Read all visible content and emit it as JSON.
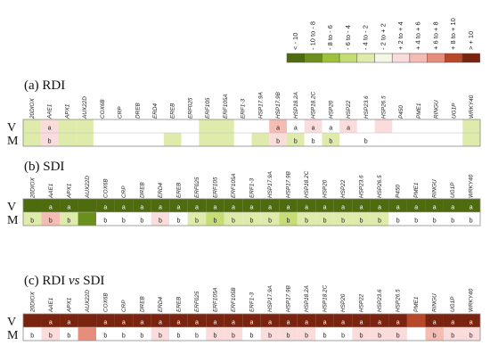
{
  "chart_data": {
    "type": "heatmap",
    "legend": {
      "bins": [
        {
          "label": "< - 10",
          "color": "#4e6b10"
        },
        {
          "label": "- 10 to - 8",
          "color": "#6b8f1c"
        },
        {
          "label": "- 8 to - 6",
          "color": "#9dc23a"
        },
        {
          "label": "- 6 to - 4",
          "color": "#c5dd74"
        },
        {
          "label": "- 4 to - 2",
          "color": "#deebab"
        },
        {
          "label": "- 2 to + 2",
          "color": "#f4f7e4"
        },
        {
          "label": "+ 2 to + 4",
          "color": "#fadcdc"
        },
        {
          "label": "+ 4 to + 6",
          "color": "#f5bcb4"
        },
        {
          "label": "+ 6 to + 8",
          "color": "#e78d7c"
        },
        {
          "label": "+ 8 to + 10",
          "color": "#b8482a"
        },
        {
          "label": "> + 10",
          "color": "#7a2410"
        }
      ]
    },
    "row_labels": [
      "V",
      "M"
    ],
    "panels": [
      {
        "title_prefix": "(a) RDI",
        "title_italic": "",
        "title_suffix": "",
        "genes": [
          "20DIOX",
          "AAE1",
          "APX1",
          "AUX22D",
          "COX6B",
          "CRP",
          "DREB",
          "ERD4",
          "EREB",
          "ERF025",
          "ERF105",
          "ERF105A",
          "ERF1-3",
          "HSP17.9A",
          "HSP17.9B",
          "HSP18.2A",
          "HSP18.2C",
          "HSP20",
          "HSP22",
          "HSP23.6",
          "HSP26.5",
          "P450",
          "PME1",
          "RINGU",
          "UG1P",
          "WRKY40"
        ],
        "rows": [
          {
            "row": "V",
            "values": [
              -4,
              3,
              -2.5,
              -2.5,
              0,
              0,
              0,
              0,
              0,
              0,
              -2.5,
              -2.5,
              0,
              0,
              5,
              0,
              2.5,
              0,
              2.5,
              0,
              3,
              0,
              0,
              0,
              0,
              -2.5
            ],
            "letters": [
              "",
              "a",
              "",
              "",
              "",
              "",
              "",
              "",
              "",
              "",
              "",
              "",
              "",
              "",
              "a",
              "a",
              "a",
              "a",
              "a",
              "",
              "",
              "",
              "",
              "",
              "",
              ""
            ]
          },
          {
            "row": "M",
            "values": [
              -2.5,
              4,
              -2.5,
              -2.5,
              0,
              0,
              0,
              0,
              -2.5,
              0,
              -2.5,
              -3,
              0,
              -4,
              3,
              -2.5,
              0,
              -3,
              0,
              0,
              0,
              0,
              0,
              0,
              0,
              -2.5
            ],
            "letters": [
              "",
              "b",
              "",
              "",
              "",
              "",
              "",
              "",
              "",
              "",
              "",
              "",
              "",
              "",
              "b",
              "b",
              "b",
              "b",
              "",
              "b",
              "",
              "",
              "",
              "",
              "",
              ""
            ]
          }
        ]
      },
      {
        "title_prefix": "(b) SDI",
        "title_italic": "",
        "title_suffix": "",
        "genes": [
          "20DIOX",
          "AAE1",
          "APX1",
          "AUX22D",
          "COX6B",
          "CRP",
          "DREB",
          "ERD4",
          "EREB",
          "ERF025",
          "ERF105",
          "ERF105A",
          "ERF1-3",
          "HSP17.9A",
          "HSP17.9B",
          "HSP18.2C",
          "HSP20",
          "HSP22",
          "HSP23.6",
          "HSP26.5",
          "P450",
          "PME1",
          "RINGU",
          "UG1P",
          "WRKY40"
        ],
        "rows": [
          {
            "row": "V",
            "values": [
              -11,
              -11,
              -11,
              -11,
              -11,
              -11,
              -11,
              -11,
              -11,
              -11,
              -11,
              -11,
              -11,
              -11,
              -11,
              -11,
              -11,
              -11,
              -11,
              -11,
              -11,
              -11,
              -11,
              -11,
              -11
            ],
            "letters": [
              "",
              "a",
              "a",
              "",
              "a",
              "a",
              "a",
              "a",
              "a",
              "a",
              "a",
              "a",
              "a",
              "a",
              "a",
              "a",
              "a",
              "a",
              "a",
              "a",
              "a",
              "a",
              "a",
              "a",
              "a"
            ]
          },
          {
            "row": "M",
            "values": [
              -2.5,
              5,
              -2.5,
              -10,
              0,
              0,
              0,
              3,
              0,
              -2.5,
              -6,
              -3,
              -2.5,
              -4,
              -6,
              -2.5,
              -2.5,
              -2.5,
              -2.5,
              -2.5,
              0,
              0,
              0,
              0,
              0
            ],
            "letters": [
              "b",
              "b",
              "b",
              "",
              "b",
              "b",
              "b",
              "b",
              "b",
              "b",
              "b",
              "b",
              "b",
              "b",
              "b",
              "b",
              "b",
              "b",
              "b",
              "b",
              "b",
              "b",
              "b",
              "b",
              "b"
            ]
          }
        ]
      },
      {
        "title_prefix": "(c) RDI ",
        "title_italic": "vs",
        "title_suffix": " SDI",
        "genes": [
          "20DIOX",
          "AAE1",
          "APX1",
          "AUX22D",
          "COX6B",
          "CRP",
          "DREB",
          "ERD4",
          "EREB",
          "ERF025",
          "ERF105A",
          "ERF105B",
          "ERF1-3",
          "HSP17.9A",
          "HSP17.9B",
          "HSP18.2A",
          "HSP18.2C",
          "HSP20",
          "HSP22",
          "HSP23.6",
          "HSP26.5",
          "PME1",
          "RINGU",
          "UG1P",
          "WRKY40"
        ],
        "rows": [
          {
            "row": "V",
            "values": [
              11,
              11,
              11,
              11,
              11,
              11,
              11,
              11,
              11,
              11,
              11,
              11,
              11,
              11,
              11,
              11,
              11,
              11,
              11,
              11,
              11,
              9,
              11,
              11,
              11
            ],
            "letters": [
              "",
              "a",
              "a",
              "",
              "a",
              "a",
              "a",
              "a",
              "a",
              "a",
              "a",
              "a",
              "a",
              "a",
              "a",
              "a",
              "a",
              "a",
              "a",
              "a",
              "a",
              "",
              "a",
              "a",
              "a"
            ]
          },
          {
            "row": "M",
            "values": [
              0,
              3,
              0,
              7,
              0,
              0,
              0,
              3,
              0,
              0,
              3,
              3,
              0,
              3,
              3,
              3,
              0,
              0,
              3,
              3,
              3,
              0,
              5,
              3,
              3
            ],
            "letters": [
              "b",
              "b",
              "b",
              "",
              "b",
              "b",
              "b",
              "b",
              "b",
              "b",
              "b",
              "b",
              "b",
              "b",
              "b",
              "b",
              "b",
              "b",
              "b",
              "b",
              "b",
              "",
              "b",
              "b",
              "b"
            ]
          }
        ]
      }
    ]
  }
}
